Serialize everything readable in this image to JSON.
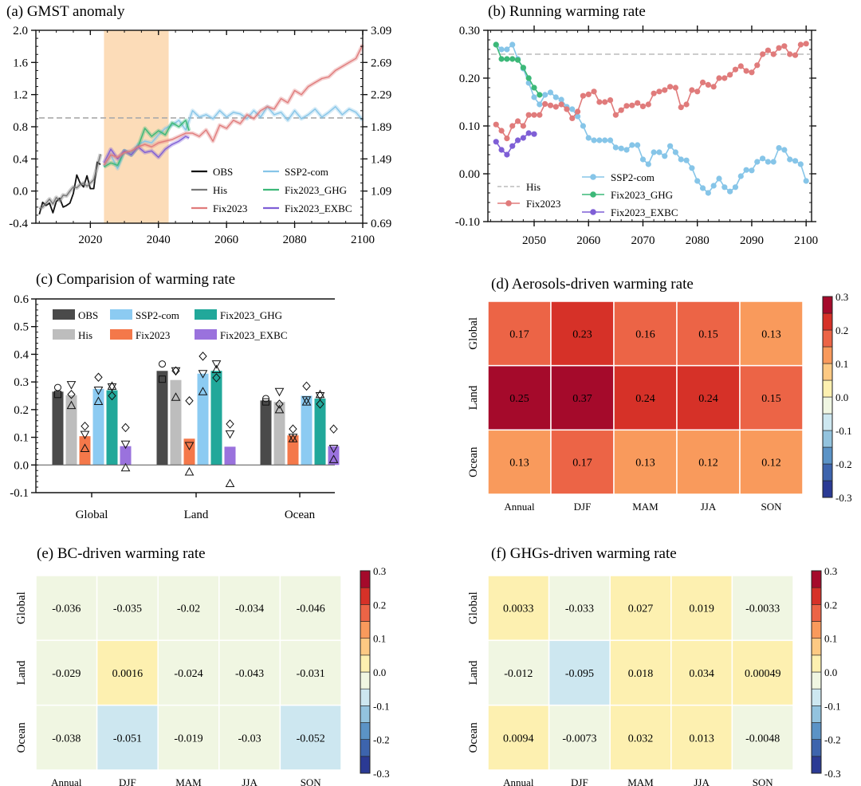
{
  "chart_data": [
    {
      "id": "a",
      "type": "line",
      "title": "(a) GMST anomaly",
      "xlabel": "",
      "ylabel": "",
      "xlim": [
        2004,
        2100
      ],
      "ylim": [
        -0.4,
        2.0
      ],
      "y2lim": [
        0.69,
        3.09
      ],
      "xticks": [
        2020,
        2040,
        2060,
        2080,
        2100
      ],
      "yticks": [
        "-0.4",
        "0.0",
        "0.4",
        "0.8",
        "1.2",
        "1.6",
        "2.0"
      ],
      "y2ticks": [
        "0.69",
        "1.09",
        "1.49",
        "1.89",
        "2.29",
        "2.69",
        "3.09"
      ],
      "shaded_period": [
        2024,
        2043
      ],
      "reference_line": 0.91,
      "legend": {
        "placement": "bottom-right",
        "entries": [
          "OBS",
          "His",
          "Fix2023",
          "SSP2-com",
          "Fix2023_GHG",
          "Fix2023_EXBC"
        ]
      },
      "series": [
        {
          "name": "OBS",
          "color": "#111111",
          "x": [
            2005,
            2006,
            2007,
            2008,
            2009,
            2010,
            2011,
            2012,
            2013,
            2014,
            2015,
            2016,
            2017,
            2018,
            2019,
            2020,
            2021,
            2022,
            2023
          ],
          "values": [
            -0.29,
            -0.14,
            -0.18,
            -0.15,
            -0.27,
            -0.13,
            -0.09,
            -0.2,
            -0.18,
            -0.15,
            -0.03,
            0.2,
            0.1,
            0.05,
            0.19,
            0.03,
            0.03,
            0.36,
            0.33
          ]
        },
        {
          "name": "His",
          "color": "#777777",
          "x": [
            2005,
            2006,
            2007,
            2008,
            2009,
            2010,
            2011,
            2012,
            2013,
            2014,
            2015,
            2016,
            2017,
            2018,
            2019,
            2020,
            2021,
            2022,
            2023
          ],
          "values": [
            -0.22,
            -0.2,
            -0.15,
            -0.1,
            -0.16,
            -0.08,
            -0.12,
            -0.05,
            -0.06,
            0.0,
            0.05,
            0.04,
            0.08,
            0.1,
            0.06,
            0.1,
            0.14,
            0.3,
            0.46
          ]
        },
        {
          "name": "SSP2-com",
          "color": "#86c5e8",
          "x": [
            2024,
            2026,
            2028,
            2030,
            2032,
            2034,
            2036,
            2038,
            2040,
            2042,
            2044,
            2046,
            2048,
            2050,
            2052,
            2054,
            2056,
            2058,
            2060,
            2062,
            2064,
            2066,
            2068,
            2070,
            2072,
            2074,
            2076,
            2078,
            2080,
            2082,
            2084,
            2086,
            2088,
            2090,
            2092,
            2094,
            2096,
            2098,
            2100
          ],
          "values": [
            0.3,
            0.45,
            0.28,
            0.5,
            0.48,
            0.58,
            0.62,
            0.6,
            0.7,
            0.78,
            0.82,
            0.88,
            0.76,
            1.0,
            0.92,
            0.95,
            0.9,
            1.0,
            0.92,
            0.98,
            0.96,
            0.9,
            1.0,
            0.92,
            1.05,
            0.95,
            0.98,
            0.88,
            1.0,
            0.9,
            0.95,
            1.02,
            0.92,
            0.98,
            1.05,
            0.95,
            1.02,
            0.98,
            0.88
          ]
        },
        {
          "name": "Fix2023_GHG",
          "color": "#3cb878",
          "x": [
            2024,
            2026,
            2028,
            2030,
            2032,
            2034,
            2036,
            2038,
            2040,
            2042,
            2044,
            2046,
            2048,
            2049
          ],
          "values": [
            0.3,
            0.35,
            0.32,
            0.5,
            0.45,
            0.55,
            0.78,
            0.68,
            0.75,
            0.7,
            0.85,
            0.8,
            0.88,
            0.75
          ]
        },
        {
          "name": "Fix2023_EXBC",
          "color": "#7f5fd6",
          "x": [
            2024,
            2026,
            2028,
            2030,
            2032,
            2034,
            2036,
            2038,
            2040,
            2042,
            2044,
            2046,
            2048,
            2049
          ],
          "values": [
            0.35,
            0.52,
            0.4,
            0.5,
            0.45,
            0.55,
            0.48,
            0.5,
            0.42,
            0.52,
            0.58,
            0.62,
            0.68,
            0.66
          ]
        },
        {
          "name": "Fix2023",
          "color": "#e07b7b",
          "x": [
            2024,
            2026,
            2028,
            2030,
            2032,
            2034,
            2036,
            2038,
            2040,
            2042,
            2044,
            2046,
            2048,
            2050,
            2052,
            2054,
            2056,
            2058,
            2060,
            2062,
            2064,
            2066,
            2068,
            2070,
            2072,
            2074,
            2076,
            2078,
            2080,
            2082,
            2084,
            2086,
            2088,
            2090,
            2092,
            2094,
            2096,
            2098,
            2100
          ],
          "values": [
            0.32,
            0.45,
            0.42,
            0.48,
            0.5,
            0.55,
            0.58,
            0.55,
            0.6,
            0.62,
            0.64,
            0.68,
            0.72,
            0.72,
            0.68,
            0.76,
            0.62,
            0.82,
            0.78,
            0.88,
            0.84,
            0.95,
            0.9,
            1.0,
            1.05,
            1.02,
            1.15,
            1.1,
            1.25,
            1.2,
            1.3,
            1.35,
            1.4,
            1.42,
            1.5,
            1.55,
            1.6,
            1.65,
            1.82
          ]
        }
      ]
    },
    {
      "id": "b",
      "type": "line",
      "title": "(b) Running warming rate",
      "xlabel": "",
      "ylabel": "",
      "xlim": [
        2041.5,
        2101
      ],
      "ylim": [
        -0.1,
        0.3
      ],
      "xticks": [
        2050,
        2060,
        2070,
        2080,
        2090,
        2100
      ],
      "yticks": [
        "-0.10",
        "0.00",
        "0.10",
        "0.20",
        "0.30"
      ],
      "reference_line": {
        "name": "His",
        "value": 0.25
      },
      "legend": {
        "placement": "bottom-left",
        "entries": [
          "His",
          "Fix2023",
          "SSP2-com",
          "Fix2023_GHG",
          "Fix2023_EXBC"
        ]
      },
      "series": [
        {
          "name": "SSP2-com",
          "color": "#86c5e8",
          "x_start": 2043,
          "values": [
            0.27,
            0.26,
            0.26,
            0.27,
            0.24,
            0.22,
            0.19,
            0.16,
            0.145,
            0.165,
            0.17,
            0.16,
            0.155,
            0.14,
            0.135,
            0.12,
            0.1,
            0.075,
            0.07,
            0.07,
            0.07,
            0.07,
            0.055,
            0.053,
            0.05,
            0.06,
            0.06,
            0.03,
            0.02,
            0.045,
            0.045,
            0.037,
            0.058,
            0.045,
            0.03,
            0.028,
            0.012,
            -0.015,
            -0.03,
            -0.04,
            -0.025,
            -0.01,
            -0.028,
            -0.037,
            -0.028,
            -0.005,
            0.008,
            0.007,
            0.025,
            0.032,
            0.025,
            0.025,
            0.054,
            0.05,
            0.03,
            0.027,
            0.02,
            -0.015
          ]
        },
        {
          "name": "Fix2023",
          "color": "#e07b7b",
          "x_start": 2043,
          "values": [
            0.103,
            0.09,
            0.074,
            0.1,
            0.11,
            0.1,
            0.123,
            0.123,
            0.123,
            0.146,
            0.143,
            0.14,
            0.145,
            0.135,
            0.116,
            0.13,
            0.163,
            0.166,
            0.172,
            0.15,
            0.15,
            0.154,
            0.123,
            0.133,
            0.142,
            0.143,
            0.148,
            0.141,
            0.145,
            0.168,
            0.172,
            0.175,
            0.182,
            0.18,
            0.139,
            0.145,
            0.175,
            0.172,
            0.191,
            0.186,
            0.182,
            0.2,
            0.2,
            0.207,
            0.218,
            0.225,
            0.215,
            0.212,
            0.227,
            0.25,
            0.258,
            0.25,
            0.263,
            0.267,
            0.25,
            0.248,
            0.27,
            0.272
          ]
        },
        {
          "name": "Fix2023_GHG",
          "color": "#3cb878",
          "x_start": 2043,
          "values": [
            0.27,
            0.24,
            0.24,
            0.24,
            0.238,
            0.222,
            0.2,
            0.18,
            0.165
          ]
        },
        {
          "name": "Fix2023_EXBC",
          "color": "#7f5fd6",
          "x_start": 2043,
          "values": [
            0.067,
            0.05,
            0.04,
            0.058,
            0.07,
            0.075,
            0.085,
            0.083
          ]
        }
      ]
    },
    {
      "id": "c",
      "type": "bar",
      "title": "(c) Comparision of warming rate",
      "xlabel": "",
      "ylabel": "",
      "ylim": [
        -0.1,
        0.6
      ],
      "yticks": [
        "-0.1",
        "0.0",
        "0.1",
        "0.2",
        "0.3",
        "0.4",
        "0.5",
        "0.6"
      ],
      "categories": [
        "Global",
        "Land",
        "Ocean"
      ],
      "legend": {
        "placement": "top",
        "entries": [
          "OBS",
          "His",
          "SSP2-com",
          "Fix2023",
          "Fix2023_GHG",
          "Fix2023_EXBC"
        ]
      },
      "series": [
        {
          "name": "OBS",
          "color": "#4a4a4a",
          "values": [
            0.265,
            0.34,
            0.233
          ],
          "markers": {
            "circle": [
              0.28,
              0.365,
              0.24
            ],
            "square": [
              0.255,
              0.31,
              0.228
            ]
          }
        },
        {
          "name": "His",
          "color": "#bdbdbd",
          "values": [
            0.252,
            0.307,
            0.228
          ],
          "markers": {
            "down_triangle": [
              0.29,
              0.34,
              0.265
            ],
            "diamond": [
              0.255,
              0.34,
              0.22
            ],
            "up_triangle": [
              0.215,
              0.245,
              0.2
            ]
          }
        },
        {
          "name": "Fix2023",
          "color": "#f4784a",
          "values": [
            0.104,
            0.095,
            0.107
          ],
          "markers": {
            "diamond": [
              0.14,
              0.232,
              0.13
            ],
            "down_triangle": [
              0.11,
              0.07,
              0.1
            ],
            "up_triangle": [
              0.06,
              -0.025,
              0.095
            ]
          }
        },
        {
          "name": "SSP2-com",
          "color": "#8ccbf2",
          "values": [
            0.275,
            0.33,
            0.25
          ],
          "markers": {
            "diamond": [
              0.317,
              0.393,
              0.285
            ],
            "down_triangle": [
              0.27,
              0.33,
              0.235
            ],
            "up_triangle": [
              0.23,
              0.265,
              0.228
            ]
          }
        },
        {
          "name": "Fix2023_GHG",
          "color": "#21a89a",
          "values": [
            0.27,
            0.34,
            0.24
          ],
          "markers": {
            "down_triangle": [
              0.282,
              0.365,
              0.25
            ],
            "diamond": [
              0.25,
              0.315,
              0.22
            ],
            "up_triangle": [
              0.285,
              0.345,
              0.255
            ]
          }
        },
        {
          "name": "Fix2023_EXBC",
          "color": "#9a72dd",
          "values": [
            0.068,
            0.066,
            0.068
          ],
          "markers": {
            "diamond": [
              0.135,
              0.148,
              0.13
            ],
            "down_triangle": [
              0.075,
              0.112,
              0.06
            ],
            "up_triangle": [
              -0.01,
              -0.067,
              0.02
            ]
          }
        }
      ]
    },
    {
      "id": "d",
      "type": "heatmap",
      "title": "(d) Aerosols-driven warming rate",
      "rows": [
        "Global",
        "Land",
        "Ocean"
      ],
      "cols": [
        "Annual",
        "DJF",
        "MAM",
        "JJA",
        "SON"
      ],
      "values": [
        [
          0.17,
          0.23,
          0.16,
          0.15,
          0.13
        ],
        [
          0.25,
          0.37,
          0.24,
          0.24,
          0.15
        ],
        [
          0.13,
          0.17,
          0.13,
          0.12,
          0.12
        ]
      ],
      "labels": [
        [
          "0.17",
          "0.23",
          "0.16",
          "0.15",
          "0.13"
        ],
        [
          "0.25",
          "0.37",
          "0.24",
          "0.24",
          "0.15"
        ],
        [
          "0.13",
          "0.17",
          "0.13",
          "0.12",
          "0.12"
        ]
      ],
      "colorbar": {
        "range": [
          -0.3,
          0.3
        ],
        "ticks": [
          "0.3",
          "0.2",
          "0.1",
          "0.0",
          "-0.1",
          "-0.2",
          "-0.3"
        ]
      }
    },
    {
      "id": "e",
      "type": "heatmap",
      "title": "(e) BC-driven warming rate",
      "rows": [
        "Global",
        "Land",
        "Ocean"
      ],
      "cols": [
        "Annual",
        "DJF",
        "MAM",
        "JJA",
        "SON"
      ],
      "values": [
        [
          -0.036,
          -0.035,
          -0.02,
          -0.034,
          -0.046
        ],
        [
          -0.029,
          0.0016,
          -0.024,
          -0.043,
          -0.031
        ],
        [
          -0.038,
          -0.051,
          -0.019,
          -0.03,
          -0.052
        ]
      ],
      "labels": [
        [
          "-0.036",
          "-0.035",
          "-0.02",
          "-0.034",
          "-0.046"
        ],
        [
          "-0.029",
          "0.0016",
          "-0.024",
          "-0.043",
          "-0.031"
        ],
        [
          "-0.038",
          "-0.051",
          "-0.019",
          "-0.03",
          "-0.052"
        ]
      ],
      "colorbar": {
        "range": [
          -0.3,
          0.3
        ],
        "ticks": [
          "0.3",
          "0.2",
          "0.1",
          "0.0",
          "-0.1",
          "-0.2",
          "-0.3"
        ]
      }
    },
    {
      "id": "f",
      "type": "heatmap",
      "title": "(f) GHGs-driven warming rate",
      "rows": [
        "Global",
        "Land",
        "Ocean"
      ],
      "cols": [
        "Annual",
        "DJF",
        "MAM",
        "JJA",
        "SON"
      ],
      "values": [
        [
          0.0033,
          -0.033,
          0.027,
          0.019,
          -0.0033
        ],
        [
          -0.012,
          -0.095,
          0.018,
          0.034,
          0.00049
        ],
        [
          0.0094,
          -0.0073,
          0.032,
          0.013,
          -0.0048
        ]
      ],
      "labels": [
        [
          "0.0033",
          "-0.033",
          "0.027",
          "0.019",
          "-0.0033"
        ],
        [
          "-0.012",
          "-0.095",
          "0.018",
          "0.034",
          "0.00049"
        ],
        [
          "0.0094",
          "-0.0073",
          "0.032",
          "0.013",
          "-0.0048"
        ]
      ],
      "colorbar": {
        "range": [
          -0.3,
          0.3
        ],
        "ticks": [
          "0.3",
          "0.2",
          "0.1",
          "0.0",
          "-0.1",
          "-0.2",
          "-0.3"
        ]
      }
    }
  ],
  "colormap": [
    "#2b3a94",
    "#3d64ad",
    "#5b93c6",
    "#93c3de",
    "#cde7f0",
    "#f0f6e2",
    "#fdf0b0",
    "#fdc983",
    "#f99a5c",
    "#ec6446",
    "#d63128",
    "#a50a2b"
  ]
}
